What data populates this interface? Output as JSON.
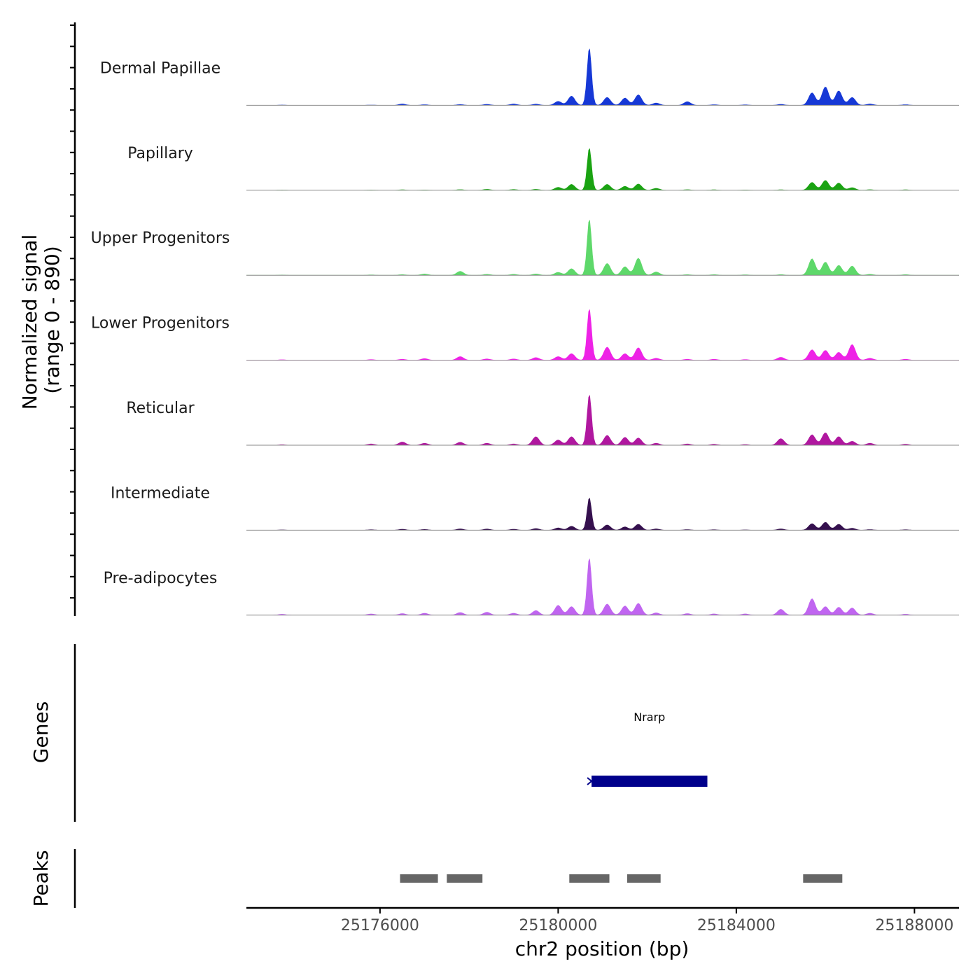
{
  "chart_data": {
    "type": "area",
    "title": "",
    "chromosome": "chr2",
    "xlabel": "chr2 position (bp)",
    "ylabel": "Normalized signal",
    "ylabel_range": "(range 0 - 890)",
    "xlim": [
      25173000,
      25189000
    ],
    "xticks": [
      25176000,
      25180000,
      25184000,
      25188000
    ],
    "xtick_labels": [
      "25176000",
      "25180000",
      "25184000",
      "25188000"
    ],
    "ylim": [
      0,
      890
    ],
    "colors": {
      "Dermal Papillae": "#1638d6",
      "Papillary": "#1aa312",
      "Upper Progenitors": "#5ed86a",
      "Lower Progenitors": "#ee22e6",
      "Reticular": "#b0179f",
      "Intermediate": "#35104e",
      "Pre-adipocytes": "#c065f0"
    },
    "peak_positions": [
      25173800,
      25175800,
      25176500,
      25177000,
      25177800,
      25178400,
      25179000,
      25179500,
      25180000,
      25180300,
      25180700,
      25181100,
      25181500,
      25181800,
      25182200,
      25182900,
      25183500,
      25184200,
      25185000,
      25185700,
      25186000,
      25186300,
      25186600,
      25187000,
      25187800
    ],
    "series": [
      {
        "name": "Dermal Papillae",
        "values": [
          5,
          5,
          20,
          10,
          12,
          15,
          20,
          18,
          60,
          140,
          880,
          120,
          110,
          160,
          35,
          55,
          10,
          8,
          15,
          190,
          280,
          220,
          120,
          20,
          10
        ]
      },
      {
        "name": "Papillary",
        "values": [
          4,
          4,
          8,
          6,
          10,
          15,
          12,
          15,
          45,
          90,
          650,
          90,
          60,
          95,
          30,
          10,
          8,
          6,
          8,
          120,
          150,
          110,
          40,
          10,
          8
        ]
      },
      {
        "name": "Upper Progenitors",
        "values": [
          4,
          6,
          10,
          20,
          60,
          15,
          15,
          20,
          45,
          100,
          860,
          180,
          130,
          260,
          50,
          10,
          10,
          8,
          10,
          250,
          200,
          150,
          140,
          15,
          10
        ]
      },
      {
        "name": "Lower Progenitors",
        "values": [
          8,
          10,
          15,
          25,
          55,
          20,
          20,
          40,
          55,
          100,
          790,
          200,
          100,
          190,
          30,
          15,
          15,
          10,
          45,
          160,
          150,
          120,
          240,
          30,
          15
        ]
      },
      {
        "name": "Reticular",
        "values": [
          8,
          20,
          50,
          30,
          45,
          30,
          20,
          130,
          80,
          130,
          780,
          150,
          120,
          110,
          30,
          20,
          15,
          10,
          100,
          160,
          190,
          130,
          60,
          30,
          15
        ]
      },
      {
        "name": "Intermediate",
        "values": [
          6,
          8,
          15,
          12,
          20,
          18,
          15,
          25,
          35,
          60,
          500,
          80,
          50,
          90,
          20,
          10,
          8,
          6,
          20,
          100,
          120,
          90,
          30,
          10,
          8
        ]
      },
      {
        "name": "Pre-adipocytes",
        "values": [
          15,
          20,
          25,
          30,
          40,
          45,
          30,
          70,
          150,
          130,
          880,
          170,
          140,
          180,
          35,
          25,
          20,
          20,
          90,
          250,
          130,
          120,
          110,
          30,
          15
        ]
      }
    ],
    "genes": [
      {
        "name": "Nrarp",
        "start": 25180750,
        "end": 25183350,
        "strand": "-"
      }
    ],
    "genes_track_label": "Genes",
    "peaks_track_label": "Peaks",
    "peaks": [
      {
        "start": 25176450,
        "end": 25177300
      },
      {
        "start": 25177500,
        "end": 25178300
      },
      {
        "start": 25180250,
        "end": 25181150
      },
      {
        "start": 25181550,
        "end": 25182300
      },
      {
        "start": 25185500,
        "end": 25186380
      }
    ]
  }
}
